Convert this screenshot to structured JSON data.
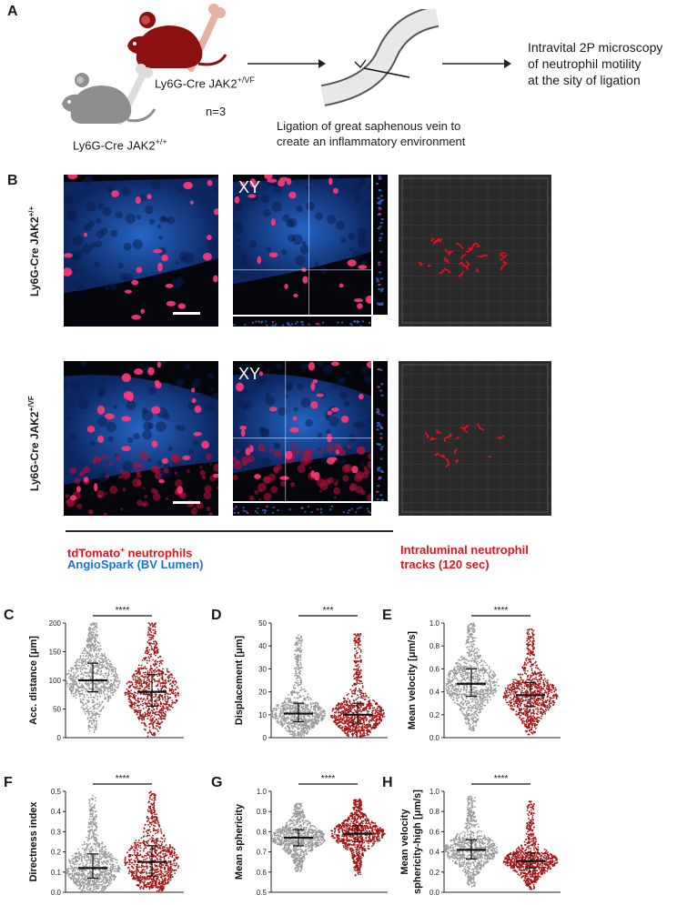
{
  "panels": {
    "A": "A",
    "B": "B",
    "C": "C",
    "D": "D",
    "E": "E",
    "F": "F",
    "G": "G",
    "H": "H"
  },
  "schematic": {
    "mouse_mutant_label": "Ly6G-Cre JAK2",
    "mouse_mutant_sup": "+/VF",
    "mouse_wt_label": "Ly6G-Cre JAK2",
    "mouse_wt_sup": "+/+",
    "n_label": "n=3",
    "ligation_line1": "Ligation of great saphenous vein to",
    "ligation_line2": "create an inflammatory environment",
    "result_line1": "Intravital 2P microscopy",
    "result_line2": "of neutrophil motility",
    "result_line3": "at the sity of ligation"
  },
  "imaging": {
    "row1_label": "Ly6G-Cre JAK2",
    "row1_sup": "+/+",
    "row2_label": "Ly6G-Cre JAK2",
    "row2_sup": "+/VF",
    "xy_label": "XY",
    "legend_red_main": "tdTomato",
    "legend_red_sup": "+",
    "legend_red_rest": " neutrophils",
    "legend_blue": "AngioSpark (BV Lumen)",
    "legend_tracks_line1": "Intraluminal neutrophil",
    "legend_tracks_line2": "tracks (120 sec)"
  },
  "colors": {
    "wt": "#9a9a9a",
    "mutant": "#a31515",
    "neutrophil_red": "#e8101c",
    "lumen_blue": "#1a6fe8"
  },
  "chart_data": [
    {
      "panel": "C",
      "type": "scatter",
      "ylabel": "Acc. distance [μm]",
      "yticks": [
        "0",
        "50",
        "100",
        "150",
        "200"
      ],
      "ylim": [
        0,
        200
      ],
      "significance": "****",
      "series": [
        {
          "color": "#9a9a9a",
          "median": 100,
          "q1": 80,
          "q3": 130,
          "min": 5,
          "max": 200
        },
        {
          "color": "#a31515",
          "median": 80,
          "q1": 55,
          "q3": 110,
          "min": 2,
          "max": 200
        }
      ]
    },
    {
      "panel": "D",
      "type": "scatter",
      "ylabel": "Displacement [μm]",
      "yticks": [
        "0",
        "10",
        "20",
        "30",
        "40",
        "50"
      ],
      "ylim": [
        0,
        50
      ],
      "significance": "***",
      "series": [
        {
          "color": "#9a9a9a",
          "median": 10.5,
          "q1": 7,
          "q3": 15,
          "min": 0,
          "max": 45
        },
        {
          "color": "#a31515",
          "median": 10,
          "q1": 6,
          "q3": 15,
          "min": 0,
          "max": 46
        }
      ]
    },
    {
      "panel": "E",
      "type": "scatter",
      "ylabel": "Mean velocity [μm/s]",
      "yticks": [
        "0.0",
        "0.2",
        "0.4",
        "0.6",
        "0.8",
        "1.0"
      ],
      "ylim": [
        0,
        1.0
      ],
      "significance": "****",
      "series": [
        {
          "color": "#9a9a9a",
          "median": 0.47,
          "q1": 0.36,
          "q3": 0.6,
          "min": 0.05,
          "max": 1.0
        },
        {
          "color": "#a31515",
          "median": 0.37,
          "q1": 0.27,
          "q3": 0.48,
          "min": 0.02,
          "max": 0.95
        }
      ]
    },
    {
      "panel": "F",
      "type": "scatter",
      "ylabel": "Directness index",
      "yticks": [
        "0.0",
        "0.1",
        "0.2",
        "0.3",
        "0.4",
        "0.5"
      ],
      "ylim": [
        0,
        0.5
      ],
      "significance": "****",
      "series": [
        {
          "color": "#9a9a9a",
          "median": 0.12,
          "q1": 0.07,
          "q3": 0.19,
          "min": 0,
          "max": 0.48
        },
        {
          "color": "#a31515",
          "median": 0.15,
          "q1": 0.08,
          "q3": 0.23,
          "min": 0,
          "max": 0.5
        }
      ]
    },
    {
      "panel": "G",
      "type": "scatter",
      "ylabel": "Mean sphericity",
      "yticks": [
        "0.5",
        "0.6",
        "0.7",
        "0.8",
        "0.9",
        "1.0"
      ],
      "ylim": [
        0.5,
        1.0
      ],
      "significance": "****",
      "series": [
        {
          "color": "#9a9a9a",
          "median": 0.77,
          "q1": 0.73,
          "q3": 0.81,
          "min": 0.6,
          "max": 0.94
        },
        {
          "color": "#a31515",
          "median": 0.79,
          "q1": 0.75,
          "q3": 0.83,
          "min": 0.58,
          "max": 0.96
        }
      ]
    },
    {
      "panel": "H",
      "type": "scatter",
      "ylabel": "Mean velocity",
      "ylabel2": "sphericity-high [μm/s]",
      "yticks": [
        "0.0",
        "0.2",
        "0.4",
        "0.6",
        "0.8",
        "1.0"
      ],
      "ylim": [
        0,
        1.0
      ],
      "significance": "****",
      "series": [
        {
          "color": "#9a9a9a",
          "median": 0.42,
          "q1": 0.33,
          "q3": 0.52,
          "min": 0.05,
          "max": 0.95
        },
        {
          "color": "#a31515",
          "median": 0.31,
          "q1": 0.24,
          "q3": 0.39,
          "min": 0.02,
          "max": 0.9
        }
      ]
    }
  ]
}
